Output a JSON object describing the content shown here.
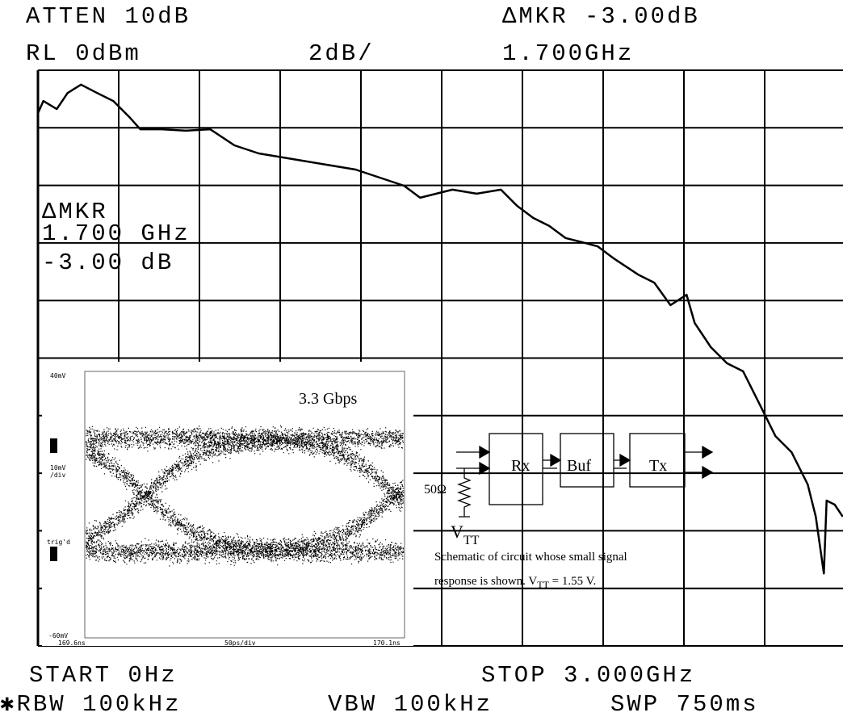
{
  "chart_data": {
    "type": "line",
    "header": {
      "atten": "ATTEN 10dB",
      "ref_level": "RL 0dBm",
      "scale": "2dB/",
      "marker_title": "ΔMKR -3.00dB",
      "marker_freq": "1.700GHz"
    },
    "marker_box": {
      "label": "ΔMKR",
      "freq": "1.700 GHz",
      "level": "-3.00 dB"
    },
    "footer": {
      "start": "START 0Hz",
      "stop": "STOP 3.000GHz",
      "rbw": "✱RBW 100kHz",
      "vbw": "VBW 100kHz",
      "sweep": "SWP 750ms"
    },
    "x": [
      0,
      0.02,
      0.07,
      0.11,
      0.16,
      0.22,
      0.28,
      0.34,
      0.38,
      0.46,
      0.55,
      0.64,
      0.73,
      0.82,
      0.91,
      1.0,
      1.09,
      1.18,
      1.27,
      1.36,
      1.42,
      1.48,
      1.54,
      1.63,
      1.72,
      1.78,
      1.84,
      1.9,
      1.96,
      2.02,
      2.08,
      2.14,
      2.23,
      2.29,
      2.35,
      2.41,
      2.44,
      2.5,
      2.56,
      2.62,
      2.68,
      2.74,
      2.8,
      2.86,
      2.89,
      2.92,
      2.93,
      2.96,
      2.99
    ],
    "values": [
      -1.49,
      -1.07,
      -1.35,
      -0.79,
      -0.5,
      -0.79,
      -1.07,
      -1.63,
      -2.05,
      -2.05,
      -2.1,
      -2.05,
      -2.61,
      -2.89,
      -3.03,
      -3.17,
      -3.31,
      -3.45,
      -3.73,
      -4.01,
      -4.43,
      -4.29,
      -4.15,
      -4.29,
      -4.15,
      -4.71,
      -5.13,
      -5.41,
      -5.83,
      -5.97,
      -6.12,
      -6.54,
      -7.1,
      -7.38,
      -8.16,
      -7.8,
      -8.78,
      -9.62,
      -10.18,
      -10.46,
      -11.58,
      -12.71,
      -13.27,
      -14.39,
      -15.51,
      -17.48,
      -14.95,
      -15.09,
      -15.51
    ],
    "color": "#000000",
    "xlim": [
      0,
      3
    ],
    "xticks": [
      0,
      0.3,
      0.6,
      0.9,
      1.2,
      1.5,
      1.8,
      2.1,
      2.4,
      2.7,
      3
    ],
    "ylim": [
      -20,
      0
    ],
    "yticks": [
      -20,
      -18,
      -16,
      -14,
      -12,
      -10,
      -8,
      -6,
      -4,
      -2,
      0
    ],
    "grid": true,
    "inset": {
      "top": "40mV",
      "scale": "10mV",
      "scale_unit": "/div",
      "trig": "trig'd",
      "bottom": "-60mV",
      "t_start": "169.6ns",
      "t_scale": "50ps/div",
      "t_end": "170.1ns",
      "rate": "3.3  Gbps"
    },
    "schematic": {
      "rx": "Rx",
      "buf": "Buf",
      "tx": "Tx",
      "resistor": "50Ω",
      "vtt": "V",
      "vtt_sub": "TT",
      "caption_line1": "Schematic of circuit whose small signal",
      "caption_pre": "response is shown. V",
      "caption_sub": "TT",
      "caption_post": " =  1.55 V."
    }
  }
}
